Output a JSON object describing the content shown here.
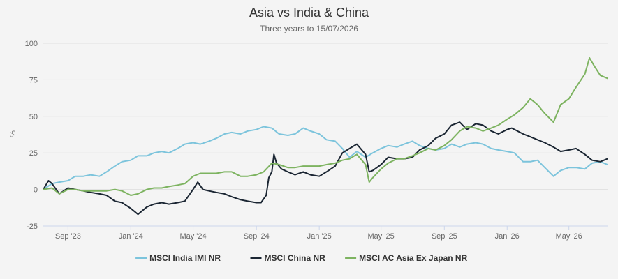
{
  "chart_data": {
    "type": "line",
    "title": "Asia vs India & China",
    "subtitle": "Three years to 15/07/2026",
    "ylabel": "%",
    "xlabel": "",
    "ylim": [
      -25,
      100
    ],
    "yticks": [
      -25,
      0,
      25,
      50,
      75,
      100
    ],
    "xlim": [
      "2023-07-15",
      "2026-07-15"
    ],
    "xticks": [
      {
        "date": "2023-09-01",
        "label": "Sep '23"
      },
      {
        "date": "2024-01-01",
        "label": "Jan '24"
      },
      {
        "date": "2024-05-01",
        "label": "May '24"
      },
      {
        "date": "2024-09-01",
        "label": "Sep '24"
      },
      {
        "date": "2025-01-01",
        "label": "Jan '25"
      },
      {
        "date": "2025-05-01",
        "label": "May '25"
      },
      {
        "date": "2025-09-01",
        "label": "Sep '25"
      },
      {
        "date": "2026-01-01",
        "label": "Jan '26"
      },
      {
        "date": "2026-05-01",
        "label": "May '26"
      }
    ],
    "grid": true,
    "legend": "bottom-center",
    "series": [
      {
        "name": "MSCI India IMI NR",
        "color": "#7cc4dc",
        "points": [
          [
            "2023-07-15",
            0
          ],
          [
            "2023-08-01",
            4
          ],
          [
            "2023-08-15",
            5
          ],
          [
            "2023-09-01",
            6
          ],
          [
            "2023-09-15",
            9
          ],
          [
            "2023-10-01",
            9
          ],
          [
            "2023-10-15",
            10
          ],
          [
            "2023-11-01",
            9
          ],
          [
            "2023-11-15",
            12
          ],
          [
            "2023-12-01",
            16
          ],
          [
            "2023-12-15",
            19
          ],
          [
            "2024-01-01",
            20
          ],
          [
            "2024-01-15",
            23
          ],
          [
            "2024-02-01",
            23
          ],
          [
            "2024-02-15",
            25
          ],
          [
            "2024-03-01",
            26
          ],
          [
            "2024-03-15",
            25
          ],
          [
            "2024-04-01",
            28
          ],
          [
            "2024-04-15",
            31
          ],
          [
            "2024-05-01",
            32
          ],
          [
            "2024-05-15",
            31
          ],
          [
            "2024-06-01",
            33
          ],
          [
            "2024-06-15",
            35
          ],
          [
            "2024-07-01",
            38
          ],
          [
            "2024-07-15",
            39
          ],
          [
            "2024-08-01",
            38
          ],
          [
            "2024-08-15",
            40
          ],
          [
            "2024-09-01",
            41
          ],
          [
            "2024-09-15",
            43
          ],
          [
            "2024-10-01",
            42
          ],
          [
            "2024-10-15",
            38
          ],
          [
            "2024-11-01",
            37
          ],
          [
            "2024-11-15",
            38
          ],
          [
            "2024-12-01",
            42
          ],
          [
            "2024-12-15",
            40
          ],
          [
            "2025-01-01",
            38
          ],
          [
            "2025-01-15",
            34
          ],
          [
            "2025-02-01",
            33
          ],
          [
            "2025-02-15",
            28
          ],
          [
            "2025-03-01",
            22
          ],
          [
            "2025-03-15",
            26
          ],
          [
            "2025-04-01",
            22
          ],
          [
            "2025-04-15",
            25
          ],
          [
            "2025-05-01",
            28
          ],
          [
            "2025-05-15",
            30
          ],
          [
            "2025-06-01",
            29
          ],
          [
            "2025-06-15",
            31
          ],
          [
            "2025-07-01",
            33
          ],
          [
            "2025-07-15",
            30
          ],
          [
            "2025-08-01",
            28
          ],
          [
            "2025-08-15",
            27
          ],
          [
            "2025-09-01",
            28
          ],
          [
            "2025-09-15",
            31
          ],
          [
            "2025-10-01",
            29
          ],
          [
            "2025-10-15",
            31
          ],
          [
            "2025-11-01",
            32
          ],
          [
            "2025-11-15",
            31
          ],
          [
            "2025-12-01",
            28
          ],
          [
            "2025-12-15",
            27
          ],
          [
            "2026-01-01",
            26
          ],
          [
            "2026-01-15",
            25
          ],
          [
            "2026-02-01",
            19
          ],
          [
            "2026-02-15",
            19
          ],
          [
            "2026-03-01",
            20
          ],
          [
            "2026-03-15",
            15
          ],
          [
            "2026-04-01",
            9
          ],
          [
            "2026-04-15",
            13
          ],
          [
            "2026-05-01",
            15
          ],
          [
            "2026-05-15",
            15
          ],
          [
            "2026-06-01",
            14
          ],
          [
            "2026-06-15",
            18
          ],
          [
            "2026-07-01",
            19
          ],
          [
            "2026-07-15",
            17
          ]
        ]
      },
      {
        "name": "MSCI China NR",
        "color": "#1b2633",
        "points": [
          [
            "2023-07-15",
            0
          ],
          [
            "2023-07-25",
            6
          ],
          [
            "2023-08-01",
            4
          ],
          [
            "2023-08-15",
            -3
          ],
          [
            "2023-09-01",
            1
          ],
          [
            "2023-09-15",
            0
          ],
          [
            "2023-10-01",
            -1
          ],
          [
            "2023-10-15",
            -2
          ],
          [
            "2023-11-01",
            -3
          ],
          [
            "2023-11-15",
            -4
          ],
          [
            "2023-12-01",
            -8
          ],
          [
            "2023-12-15",
            -9
          ],
          [
            "2024-01-01",
            -13
          ],
          [
            "2024-01-15",
            -17
          ],
          [
            "2024-02-01",
            -12
          ],
          [
            "2024-02-15",
            -10
          ],
          [
            "2024-03-01",
            -9
          ],
          [
            "2024-03-15",
            -10
          ],
          [
            "2024-04-01",
            -9
          ],
          [
            "2024-04-15",
            -8
          ],
          [
            "2024-05-01",
            0
          ],
          [
            "2024-05-10",
            5
          ],
          [
            "2024-05-20",
            0
          ],
          [
            "2024-06-01",
            -1
          ],
          [
            "2024-06-15",
            -2
          ],
          [
            "2024-07-01",
            -3
          ],
          [
            "2024-07-15",
            -5
          ],
          [
            "2024-08-01",
            -7
          ],
          [
            "2024-08-15",
            -8
          ],
          [
            "2024-09-01",
            -9
          ],
          [
            "2024-09-10",
            -9
          ],
          [
            "2024-09-20",
            -4
          ],
          [
            "2024-09-25",
            8
          ],
          [
            "2024-10-01",
            12
          ],
          [
            "2024-10-05",
            24
          ],
          [
            "2024-10-10",
            18
          ],
          [
            "2024-10-20",
            14
          ],
          [
            "2024-11-01",
            12
          ],
          [
            "2024-11-15",
            10
          ],
          [
            "2024-12-01",
            12
          ],
          [
            "2024-12-15",
            10
          ],
          [
            "2025-01-01",
            9
          ],
          [
            "2025-01-15",
            12
          ],
          [
            "2025-02-01",
            16
          ],
          [
            "2025-02-15",
            25
          ],
          [
            "2025-03-01",
            28
          ],
          [
            "2025-03-15",
            31
          ],
          [
            "2025-04-01",
            24
          ],
          [
            "2025-04-08",
            12
          ],
          [
            "2025-04-15",
            13
          ],
          [
            "2025-05-01",
            17
          ],
          [
            "2025-05-15",
            22
          ],
          [
            "2025-06-01",
            21
          ],
          [
            "2025-06-15",
            21
          ],
          [
            "2025-07-01",
            22
          ],
          [
            "2025-07-15",
            27
          ],
          [
            "2025-08-01",
            30
          ],
          [
            "2025-08-15",
            35
          ],
          [
            "2025-09-01",
            38
          ],
          [
            "2025-09-15",
            44
          ],
          [
            "2025-10-01",
            46
          ],
          [
            "2025-10-15",
            41
          ],
          [
            "2025-11-01",
            45
          ],
          [
            "2025-11-15",
            44
          ],
          [
            "2025-12-01",
            40
          ],
          [
            "2025-12-15",
            38
          ],
          [
            "2026-01-01",
            41
          ],
          [
            "2026-01-10",
            42
          ],
          [
            "2026-02-01",
            38
          ],
          [
            "2026-02-15",
            36
          ],
          [
            "2026-03-01",
            34
          ],
          [
            "2026-03-15",
            32
          ],
          [
            "2026-04-01",
            29
          ],
          [
            "2026-04-15",
            26
          ],
          [
            "2026-05-01",
            27
          ],
          [
            "2026-05-15",
            28
          ],
          [
            "2026-06-01",
            24
          ],
          [
            "2026-06-15",
            20
          ],
          [
            "2026-07-01",
            19
          ],
          [
            "2026-07-15",
            21
          ]
        ]
      },
      {
        "name": "MSCI AC Asia Ex Japan NR",
        "color": "#7db360",
        "points": [
          [
            "2023-07-15",
            0
          ],
          [
            "2023-08-01",
            1
          ],
          [
            "2023-08-15",
            -3
          ],
          [
            "2023-09-01",
            0
          ],
          [
            "2023-09-15",
            0
          ],
          [
            "2023-10-01",
            -1
          ],
          [
            "2023-10-15",
            -1
          ],
          [
            "2023-11-01",
            -1
          ],
          [
            "2023-11-15",
            -1
          ],
          [
            "2023-12-01",
            0
          ],
          [
            "2023-12-15",
            -1
          ],
          [
            "2024-01-01",
            -4
          ],
          [
            "2024-01-15",
            -3
          ],
          [
            "2024-02-01",
            0
          ],
          [
            "2024-02-15",
            1
          ],
          [
            "2024-03-01",
            1
          ],
          [
            "2024-03-15",
            2
          ],
          [
            "2024-04-01",
            3
          ],
          [
            "2024-04-15",
            4
          ],
          [
            "2024-05-01",
            9
          ],
          [
            "2024-05-15",
            11
          ],
          [
            "2024-06-01",
            11
          ],
          [
            "2024-06-15",
            11
          ],
          [
            "2024-07-01",
            12
          ],
          [
            "2024-07-15",
            12
          ],
          [
            "2024-08-01",
            9
          ],
          [
            "2024-08-15",
            9
          ],
          [
            "2024-09-01",
            10
          ],
          [
            "2024-09-15",
            12
          ],
          [
            "2024-10-01",
            18
          ],
          [
            "2024-10-15",
            17
          ],
          [
            "2024-11-01",
            15
          ],
          [
            "2024-11-15",
            15
          ],
          [
            "2024-12-01",
            16
          ],
          [
            "2024-12-15",
            16
          ],
          [
            "2025-01-01",
            16
          ],
          [
            "2025-01-15",
            17
          ],
          [
            "2025-02-01",
            18
          ],
          [
            "2025-02-15",
            20
          ],
          [
            "2025-03-01",
            21
          ],
          [
            "2025-03-15",
            24
          ],
          [
            "2025-04-01",
            17
          ],
          [
            "2025-04-08",
            5
          ],
          [
            "2025-04-15",
            8
          ],
          [
            "2025-05-01",
            14
          ],
          [
            "2025-05-15",
            18
          ],
          [
            "2025-06-01",
            21
          ],
          [
            "2025-06-15",
            21
          ],
          [
            "2025-07-01",
            23
          ],
          [
            "2025-07-15",
            25
          ],
          [
            "2025-08-01",
            28
          ],
          [
            "2025-08-15",
            27
          ],
          [
            "2025-09-01",
            30
          ],
          [
            "2025-09-15",
            34
          ],
          [
            "2025-10-01",
            40
          ],
          [
            "2025-10-15",
            43
          ],
          [
            "2025-11-01",
            42
          ],
          [
            "2025-11-15",
            40
          ],
          [
            "2025-12-01",
            42
          ],
          [
            "2025-12-15",
            44
          ],
          [
            "2026-01-01",
            48
          ],
          [
            "2026-01-15",
            51
          ],
          [
            "2026-02-01",
            56
          ],
          [
            "2026-02-15",
            62
          ],
          [
            "2026-03-01",
            58
          ],
          [
            "2026-03-15",
            52
          ],
          [
            "2026-04-01",
            46
          ],
          [
            "2026-04-15",
            58
          ],
          [
            "2026-05-01",
            62
          ],
          [
            "2026-05-15",
            70
          ],
          [
            "2026-06-01",
            79
          ],
          [
            "2026-06-10",
            90
          ],
          [
            "2026-06-20",
            84
          ],
          [
            "2026-07-01",
            78
          ],
          [
            "2026-07-15",
            76
          ]
        ]
      }
    ]
  }
}
